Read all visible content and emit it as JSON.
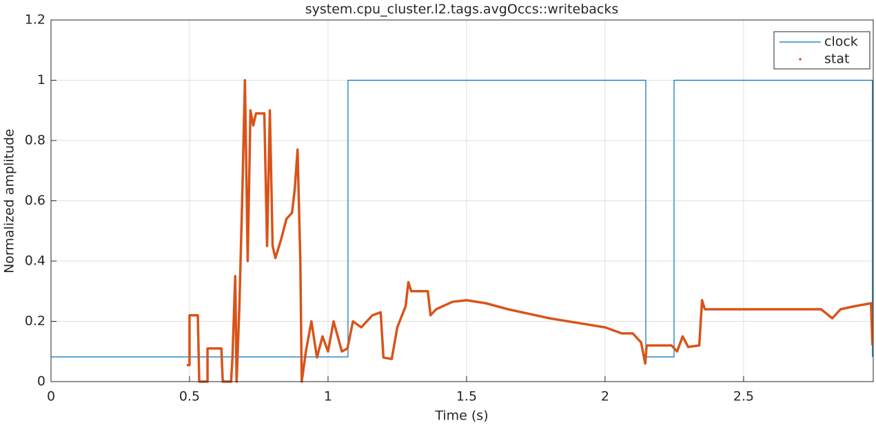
{
  "chart_data": {
    "type": "line",
    "title": "system.cpu_cluster.l2.tags.avgOccs::writebacks",
    "x_label": "Time (s)",
    "y_label": "Normalized amplitude",
    "xlim": [
      0,
      2.968
    ],
    "ylim": [
      0,
      1.2
    ],
    "xticks": [
      0,
      0.5,
      1,
      1.5,
      2,
      2.5
    ],
    "yticks": [
      0,
      0.2,
      0.4,
      0.6,
      0.8,
      1,
      1.2
    ],
    "grid": true,
    "legend_position": "northeast",
    "series": [
      {
        "name": "clock",
        "color": "#0072bd",
        "marker": "none",
        "x": [
          0,
          1.072,
          1.072,
          2.147,
          2.147,
          2.249,
          2.249,
          2.965,
          2.965
        ],
        "values": [
          0.082,
          0.082,
          1,
          1,
          0.082,
          0.082,
          1,
          1,
          0.082
        ]
      },
      {
        "name": "stat",
        "color": "#d95319",
        "marker": "dot",
        "x": [
          0.49,
          0.5,
          0.5,
          0.53,
          0.535,
          0.565,
          0.565,
          0.615,
          0.62,
          0.65,
          0.655,
          0.665,
          0.67,
          0.68,
          0.69,
          0.7,
          0.71,
          0.72,
          0.73,
          0.74,
          0.77,
          0.78,
          0.79,
          0.8,
          0.81,
          0.83,
          0.85,
          0.87,
          0.88,
          0.89,
          0.9,
          0.905,
          0.92,
          0.94,
          0.96,
          0.98,
          1.0,
          1.02,
          1.05,
          1.07,
          1.09,
          1.12,
          1.16,
          1.19,
          1.2,
          1.23,
          1.25,
          1.28,
          1.29,
          1.3,
          1.36,
          1.37,
          1.39,
          1.45,
          1.5,
          1.57,
          1.65,
          1.7,
          1.8,
          1.9,
          2.0,
          2.06,
          2.1,
          2.13,
          2.145,
          2.15,
          2.24,
          2.26,
          2.28,
          2.3,
          2.34,
          2.35,
          2.36,
          2.78,
          2.82,
          2.85,
          2.9,
          2.96,
          2.965
        ],
        "values": [
          0.055,
          0.055,
          0.22,
          0.22,
          0,
          0,
          0.11,
          0.11,
          0,
          0,
          0.08,
          0.35,
          0,
          0.25,
          0.6,
          1.0,
          0.4,
          0.9,
          0.85,
          0.89,
          0.89,
          0.45,
          0.9,
          0.45,
          0.41,
          0.47,
          0.54,
          0.56,
          0.64,
          0.77,
          0.4,
          0,
          0.1,
          0.2,
          0.08,
          0.15,
          0.1,
          0.2,
          0.1,
          0.11,
          0.2,
          0.18,
          0.22,
          0.23,
          0.08,
          0.075,
          0.18,
          0.25,
          0.33,
          0.3,
          0.3,
          0.22,
          0.24,
          0.265,
          0.27,
          0.26,
          0.24,
          0.23,
          0.21,
          0.195,
          0.18,
          0.16,
          0.16,
          0.13,
          0.06,
          0.12,
          0.12,
          0.1,
          0.15,
          0.115,
          0.12,
          0.27,
          0.24,
          0.24,
          0.21,
          0.24,
          0.25,
          0.26,
          0.12
        ]
      }
    ]
  }
}
